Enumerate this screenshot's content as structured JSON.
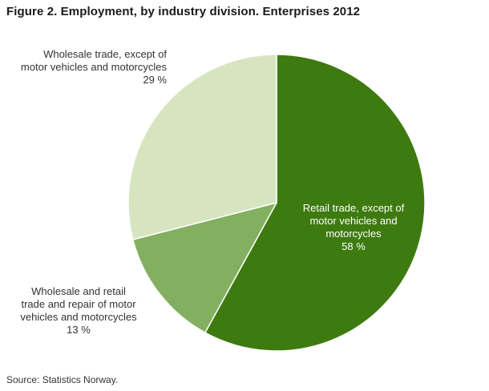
{
  "title": "Figure 2. Employment, by industry division. Enterprises 2012",
  "source": "Source: Statistics Norway.",
  "labels": {
    "retail": "Retail trade, except of\nmotor vehicles and\nmotorcycles\n58 %",
    "motor": "Wholesale and retail\ntrade and repair of motor\nvehicles and motorcycles\n13 %",
    "wholesale": "Wholesale trade, except of\nmotor vehicles and motorcycles\n29 %"
  },
  "chart_data": {
    "type": "pie",
    "title": "Figure 2. Employment, by industry division. Enterprises 2012",
    "source": "Source: Statistics Norway.",
    "start_angle_deg": 0,
    "direction": "clockwise",
    "legend": "none",
    "slices": [
      {
        "label": "Retail trade, except of motor vehicles and motorcycles",
        "value": 58,
        "unit": "%",
        "color": "#3d7a0f",
        "label_position": "inside"
      },
      {
        "label": "Wholesale and retail trade and repair of motor vehicles and motorcycles",
        "value": 13,
        "unit": "%",
        "color": "#83af60",
        "label_position": "outside-bottom-left"
      },
      {
        "label": "Wholesale trade, except of motor vehicles and motorcycles",
        "value": 29,
        "unit": "%",
        "color": "#d6e5c0",
        "label_position": "outside-top-left"
      }
    ]
  }
}
